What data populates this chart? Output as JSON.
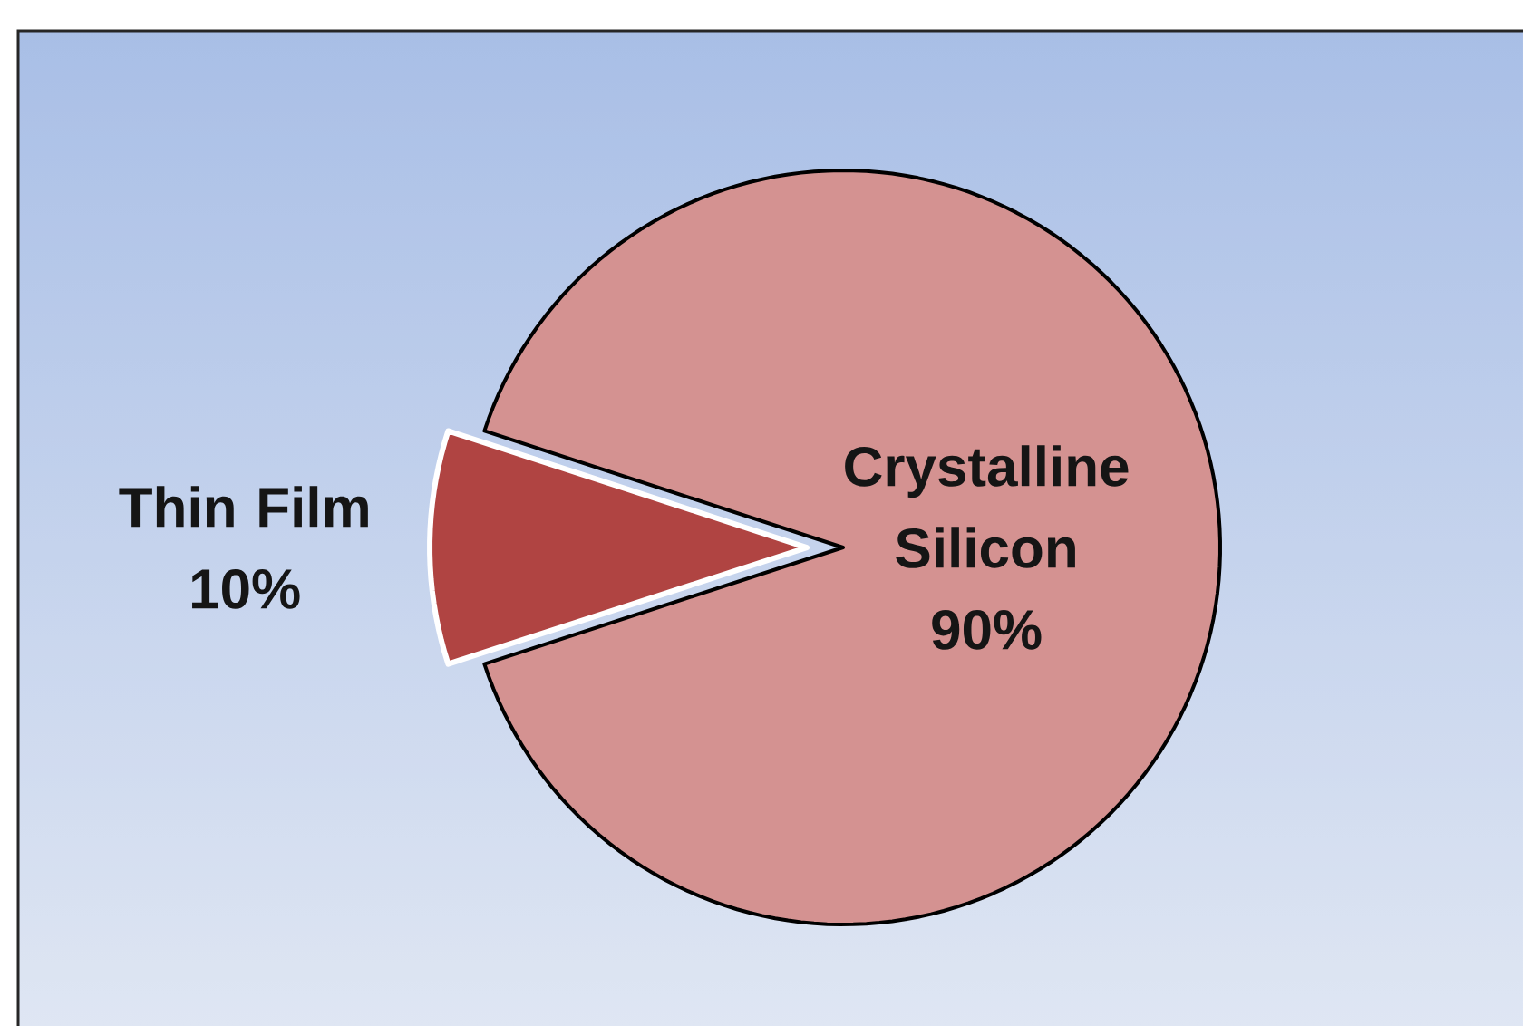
{
  "chart_data": {
    "type": "pie",
    "categories": [
      "Crystalline Silicon",
      "Thin Film"
    ],
    "values": [
      90,
      10
    ],
    "colors": [
      "#d49291",
      "#b04442"
    ],
    "value_labels": [
      "90%",
      "10%"
    ]
  }
}
